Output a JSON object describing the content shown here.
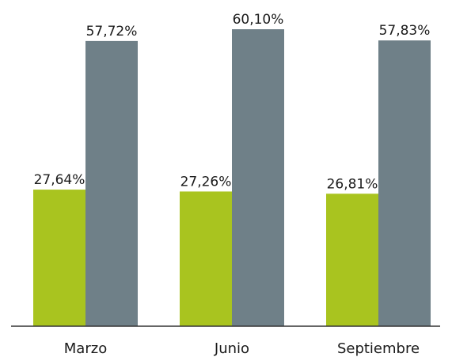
{
  "chart_data": {
    "type": "bar",
    "categories": [
      "Marzo",
      "Junio",
      "Septiembre"
    ],
    "series": [
      {
        "color": "#a9c41f",
        "values": [
          27.64,
          27.26,
          26.81
        ],
        "value_labels": [
          "27,64%",
          "27,26%",
          "26,81%"
        ]
      },
      {
        "color": "#6f8088",
        "values": [
          57.72,
          60.1,
          57.83
        ],
        "value_labels": [
          "57,72%",
          "60,10%",
          "57,83%"
        ]
      }
    ]
  }
}
